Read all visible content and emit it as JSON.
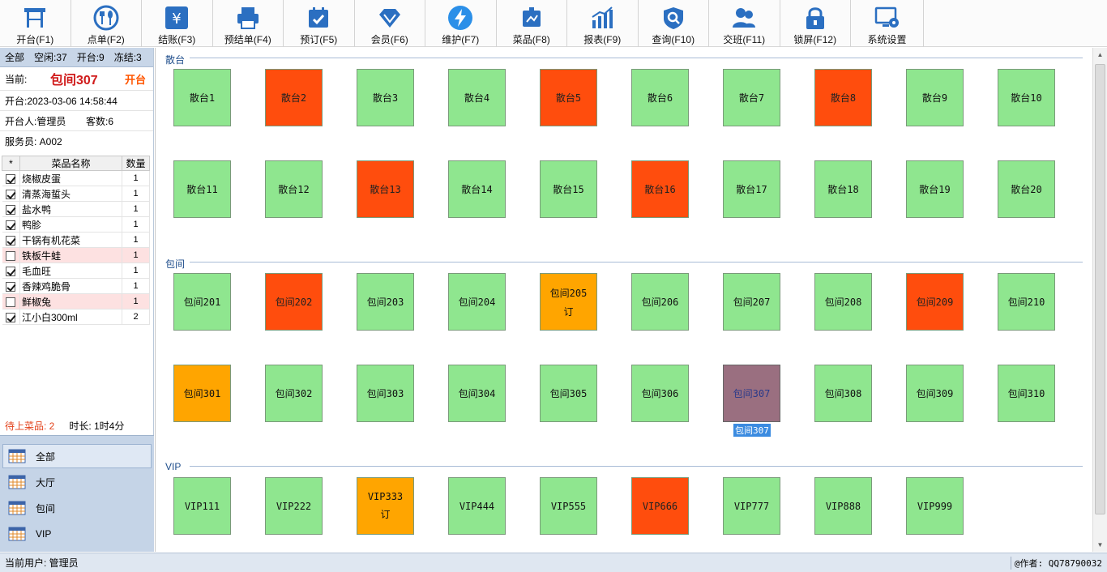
{
  "toolbar": {
    "buttons": [
      {
        "label": "开台(F1)",
        "icon": "table-icon",
        "color": "#2b6fc1"
      },
      {
        "label": "点单(F2)",
        "icon": "dining-icon",
        "color": "#2b6fc1"
      },
      {
        "label": "结账(F3)",
        "icon": "yuan-icon",
        "color": "#2b6fc1"
      },
      {
        "label": "预结单(F4)",
        "icon": "printer-icon",
        "color": "#2b6fc1"
      },
      {
        "label": "预订(F5)",
        "icon": "calendar-icon",
        "color": "#2b6fc1"
      },
      {
        "label": "会员(F6)",
        "icon": "diamond-icon",
        "color": "#2b6fc1"
      },
      {
        "label": "维护(F7)",
        "icon": "lightning-icon",
        "color": "#2b6fc1"
      },
      {
        "label": "菜品(F8)",
        "icon": "menu-board-icon",
        "color": "#2b6fc1"
      },
      {
        "label": "报表(F9)",
        "icon": "chart-icon",
        "color": "#2b6fc1"
      },
      {
        "label": "查询(F10)",
        "icon": "search-icon",
        "color": "#2b6fc1"
      },
      {
        "label": "交班(F11)",
        "icon": "users-icon",
        "color": "#2b6fc1"
      },
      {
        "label": "锁屏(F12)",
        "icon": "lock-icon",
        "color": "#2b6fc1"
      },
      {
        "label": "系统设置",
        "icon": "settings-monitor-icon",
        "color": "#2b6fc1"
      }
    ]
  },
  "summary": {
    "all": "全部",
    "idle": "空闲:37",
    "open": "开台:9",
    "frozen": "冻结:3"
  },
  "current": {
    "label": "当前:",
    "table": "包间307",
    "status": "开台",
    "open_time": "开台:2023-03-06 14:58:44",
    "opener": "开台人:管理员",
    "guests": "客数:6",
    "waiter": "服务员: A002"
  },
  "dish_table": {
    "headers": [
      "*",
      "菜品名称",
      "数量"
    ],
    "rows": [
      {
        "name": "烧椒皮蛋",
        "qty": "1",
        "checked": true
      },
      {
        "name": "清蒸海蜇头",
        "qty": "1",
        "checked": true
      },
      {
        "name": "盐水鸭",
        "qty": "1",
        "checked": true
      },
      {
        "name": "鸭胗",
        "qty": "1",
        "checked": true
      },
      {
        "name": "干锅有机花菜",
        "qty": "1",
        "checked": true
      },
      {
        "name": "铁板牛蛙",
        "qty": "1",
        "checked": false
      },
      {
        "name": "毛血旺",
        "qty": "1",
        "checked": true
      },
      {
        "name": "香辣鸡脆骨",
        "qty": "1",
        "checked": true
      },
      {
        "name": "鲜椒兔",
        "qty": "1",
        "checked": false
      },
      {
        "name": "江小白300ml",
        "qty": "2",
        "checked": true
      }
    ]
  },
  "footer_stats": {
    "pending": "待上菜品: 2",
    "duration": "时长: 1时4分"
  },
  "area_nav": {
    "items": [
      {
        "label": "全部",
        "active": true
      },
      {
        "label": "大厅",
        "active": false
      },
      {
        "label": "包间",
        "active": false
      },
      {
        "label": "VIP",
        "active": false
      }
    ]
  },
  "sections": {
    "sanTai": "散台",
    "baoJian": "包间",
    "vip": "VIP"
  },
  "tables": {
    "sanTai": [
      {
        "name": "散台1",
        "state": "free"
      },
      {
        "name": "散台2",
        "state": "open"
      },
      {
        "name": "散台3",
        "state": "free"
      },
      {
        "name": "散台4",
        "state": "free"
      },
      {
        "name": "散台5",
        "state": "open"
      },
      {
        "name": "散台6",
        "state": "free"
      },
      {
        "name": "散台7",
        "state": "free"
      },
      {
        "name": "散台8",
        "state": "open"
      },
      {
        "name": "散台9",
        "state": "free"
      },
      {
        "name": "散台10",
        "state": "free"
      },
      {
        "name": "散台11",
        "state": "free"
      },
      {
        "name": "散台12",
        "state": "free"
      },
      {
        "name": "散台13",
        "state": "open"
      },
      {
        "name": "散台14",
        "state": "free"
      },
      {
        "name": "散台15",
        "state": "free"
      },
      {
        "name": "散台16",
        "state": "open"
      },
      {
        "name": "散台17",
        "state": "free"
      },
      {
        "name": "散台18",
        "state": "free"
      },
      {
        "name": "散台19",
        "state": "free"
      },
      {
        "name": "散台20",
        "state": "free"
      }
    ],
    "baoJian": [
      {
        "name": "包间201",
        "state": "free"
      },
      {
        "name": "包间202",
        "state": "open"
      },
      {
        "name": "包间203",
        "state": "free"
      },
      {
        "name": "包间204",
        "state": "free"
      },
      {
        "name": "包间205",
        "state": "booked",
        "tag": "订"
      },
      {
        "name": "包间206",
        "state": "free"
      },
      {
        "name": "包间207",
        "state": "free"
      },
      {
        "name": "包间208",
        "state": "free"
      },
      {
        "name": "包间209",
        "state": "open"
      },
      {
        "name": "包间210",
        "state": "free"
      },
      {
        "name": "包间301",
        "state": "booked"
      },
      {
        "name": "包间302",
        "state": "free"
      },
      {
        "name": "包间303",
        "state": "free"
      },
      {
        "name": "包间304",
        "state": "free"
      },
      {
        "name": "包间305",
        "state": "free"
      },
      {
        "name": "包间306",
        "state": "free"
      },
      {
        "name": "包间307",
        "state": "selected",
        "caption": "包间307"
      },
      {
        "name": "包间308",
        "state": "free"
      },
      {
        "name": "包间309",
        "state": "free"
      },
      {
        "name": "包间310",
        "state": "free"
      }
    ],
    "vip": [
      {
        "name": "VIP111",
        "state": "free"
      },
      {
        "name": "VIP222",
        "state": "free"
      },
      {
        "name": "VIP333",
        "state": "booked",
        "tag": "订"
      },
      {
        "name": "VIP444",
        "state": "free"
      },
      {
        "name": "VIP555",
        "state": "free"
      },
      {
        "name": "VIP666",
        "state": "open"
      },
      {
        "name": "VIP777",
        "state": "free"
      },
      {
        "name": "VIP888",
        "state": "free"
      },
      {
        "name": "VIP999",
        "state": "free"
      }
    ]
  },
  "statusbar": {
    "user": "当前用户: 管理员",
    "author": "@作者: QQ78790032"
  }
}
